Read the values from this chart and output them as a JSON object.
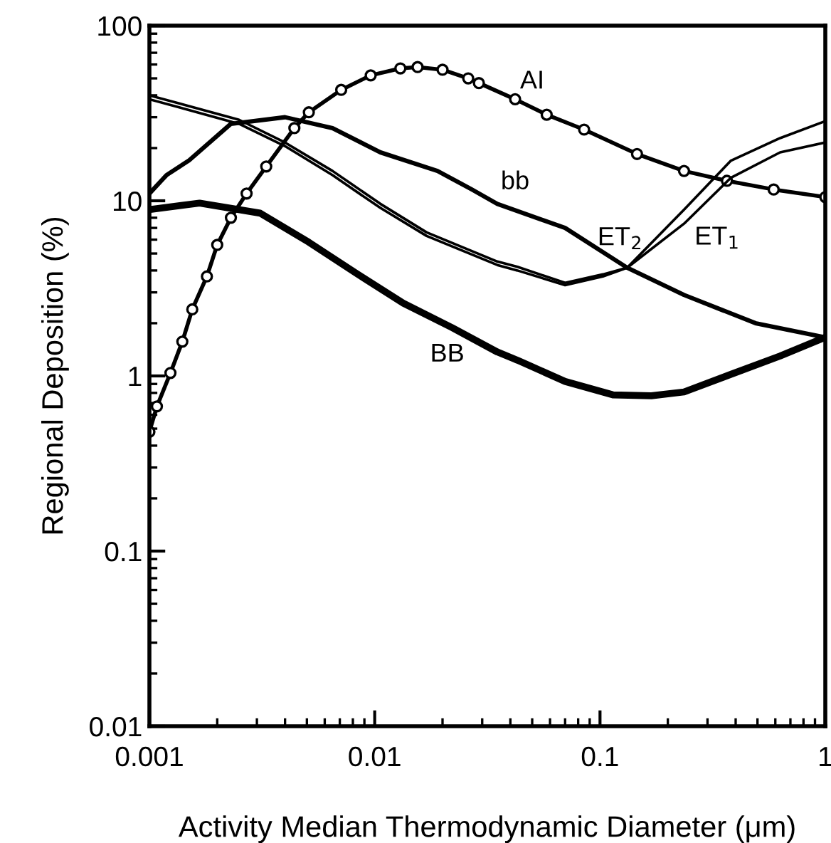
{
  "chart_data": {
    "type": "line",
    "xlabel": "Activity Median Thermodynamic Diameter (μm)",
    "ylabel": "Regional Deposition (%)",
    "log": "xy",
    "xlim": [
      0.001,
      1
    ],
    "ylim": [
      0.01,
      100
    ],
    "xticks": [
      0.001,
      0.01,
      0.1,
      1
    ],
    "yticks": [
      0.01,
      0.1,
      1,
      10,
      100
    ],
    "grid": false,
    "legend": false,
    "series": [
      {
        "name": "AI",
        "color": "#000000",
        "marker": "circle",
        "x": [
          0.001,
          0.00108,
          0.00124,
          0.0014,
          0.00155,
          0.0018,
          0.002,
          0.0023,
          0.0027,
          0.0033,
          0.0044,
          0.0051,
          0.0071,
          0.0096,
          0.013,
          0.0155,
          0.02,
          0.026,
          0.029,
          0.042,
          0.058,
          0.085,
          0.146,
          0.236,
          0.366,
          0.59,
          1
        ],
        "values": [
          0.48,
          0.67,
          1.04,
          1.57,
          2.4,
          3.7,
          5.6,
          8,
          11,
          15.7,
          26,
          32,
          43,
          52,
          57,
          58,
          56,
          50,
          47,
          38,
          31,
          25.5,
          18.5,
          14.8,
          13,
          11.6,
          10.5
        ]
      },
      {
        "name": "bb",
        "color": "#000000",
        "marker": "none",
        "x": [
          0.001,
          0.00119,
          0.0015,
          0.0023,
          0.004,
          0.0065,
          0.0106,
          0.019,
          0.027,
          0.035,
          0.07,
          0.132,
          0.236,
          0.49,
          1
        ],
        "values": [
          11,
          14,
          17,
          27.5,
          30,
          26,
          18.9,
          14.8,
          11.6,
          9.6,
          7,
          4.15,
          2.9,
          2,
          1.66
        ]
      },
      {
        "name": "ET$_{2}$",
        "color": "#000000",
        "marker": "none",
        "x": [
          0.001,
          0.0025,
          0.004,
          0.0065,
          0.0106,
          0.017,
          0.035,
          0.043,
          0.07,
          0.103,
          0.132,
          0.236,
          0.38,
          0.63,
          1
        ],
        "values": [
          40,
          29,
          21.5,
          14.8,
          9.6,
          6.6,
          4.5,
          4.2,
          3.4,
          3.8,
          4.15,
          8.9,
          16.9,
          22.8,
          28.5
        ]
      },
      {
        "name": "ET$_{1}$",
        "color": "#000000",
        "marker": "none",
        "x": [
          0.001,
          0.0025,
          0.004,
          0.0065,
          0.0106,
          0.017,
          0.035,
          0.043,
          0.07,
          0.103,
          0.132,
          0.236,
          0.38,
          0.63,
          1
        ],
        "values": [
          38,
          27.5,
          20.5,
          14,
          9.1,
          6.3,
          4.3,
          4,
          3.3,
          3.7,
          4.15,
          7.4,
          13.5,
          18.9,
          21.5
        ]
      },
      {
        "name": "BB",
        "color": "#000000",
        "marker": "none",
        "x": [
          0.001,
          0.00167,
          0.0031,
          0.0051,
          0.0083,
          0.0134,
          0.022,
          0.035,
          0.043,
          0.07,
          0.114,
          0.169,
          0.236,
          0.38,
          0.63,
          1
        ],
        "values": [
          8.9,
          9.7,
          8.5,
          5.8,
          3.85,
          2.6,
          1.89,
          1.37,
          1.23,
          0.93,
          0.78,
          0.77,
          0.81,
          1.02,
          1.3,
          1.66
        ]
      }
    ]
  }
}
